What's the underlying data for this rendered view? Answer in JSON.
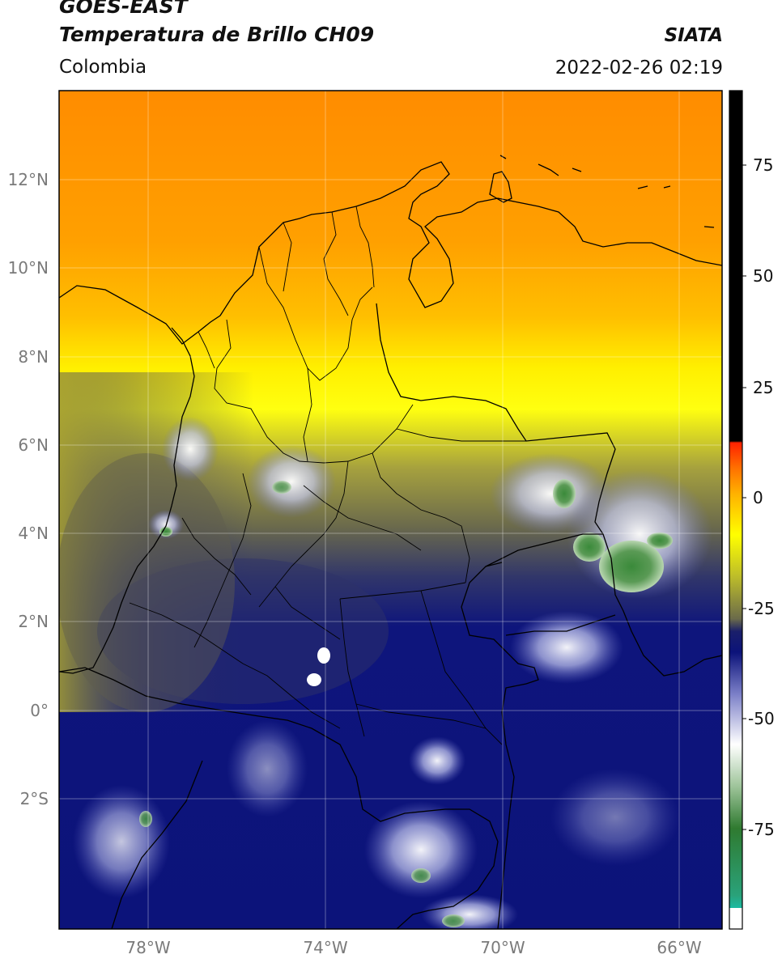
{
  "header": {
    "satellite": "GOES-EAST",
    "product": "Temperatura de Brillo CH09",
    "region": "Colombia",
    "agency": "SIATA",
    "timestamp": "2022-02-26 02:19"
  },
  "map": {
    "lon_range": [
      -80,
      -65
    ],
    "lat_range": [
      -5,
      14
    ],
    "lat_ticks": [
      "12°N",
      "10°N",
      "8°N",
      "6°N",
      "4°N",
      "2°N",
      "0°",
      "2°S"
    ],
    "lon_ticks": [
      "78°W",
      "74°W",
      "70°W",
      "66°W"
    ],
    "grid": true
  },
  "colorbar": {
    "ticks": [
      "75",
      "50",
      "25",
      "0",
      "-25",
      "-50",
      "-75"
    ],
    "range": [
      -97,
      90
    ],
    "colors": {
      "black": "#000000",
      "red": "#ff2200",
      "orange": "#ff9900",
      "yellow": "#ffff00",
      "olive": "#8a8a3a",
      "navy": "#0c137a",
      "white": "#ffffff",
      "green": "#2f7a30",
      "cyan": "#00e5e5"
    }
  }
}
